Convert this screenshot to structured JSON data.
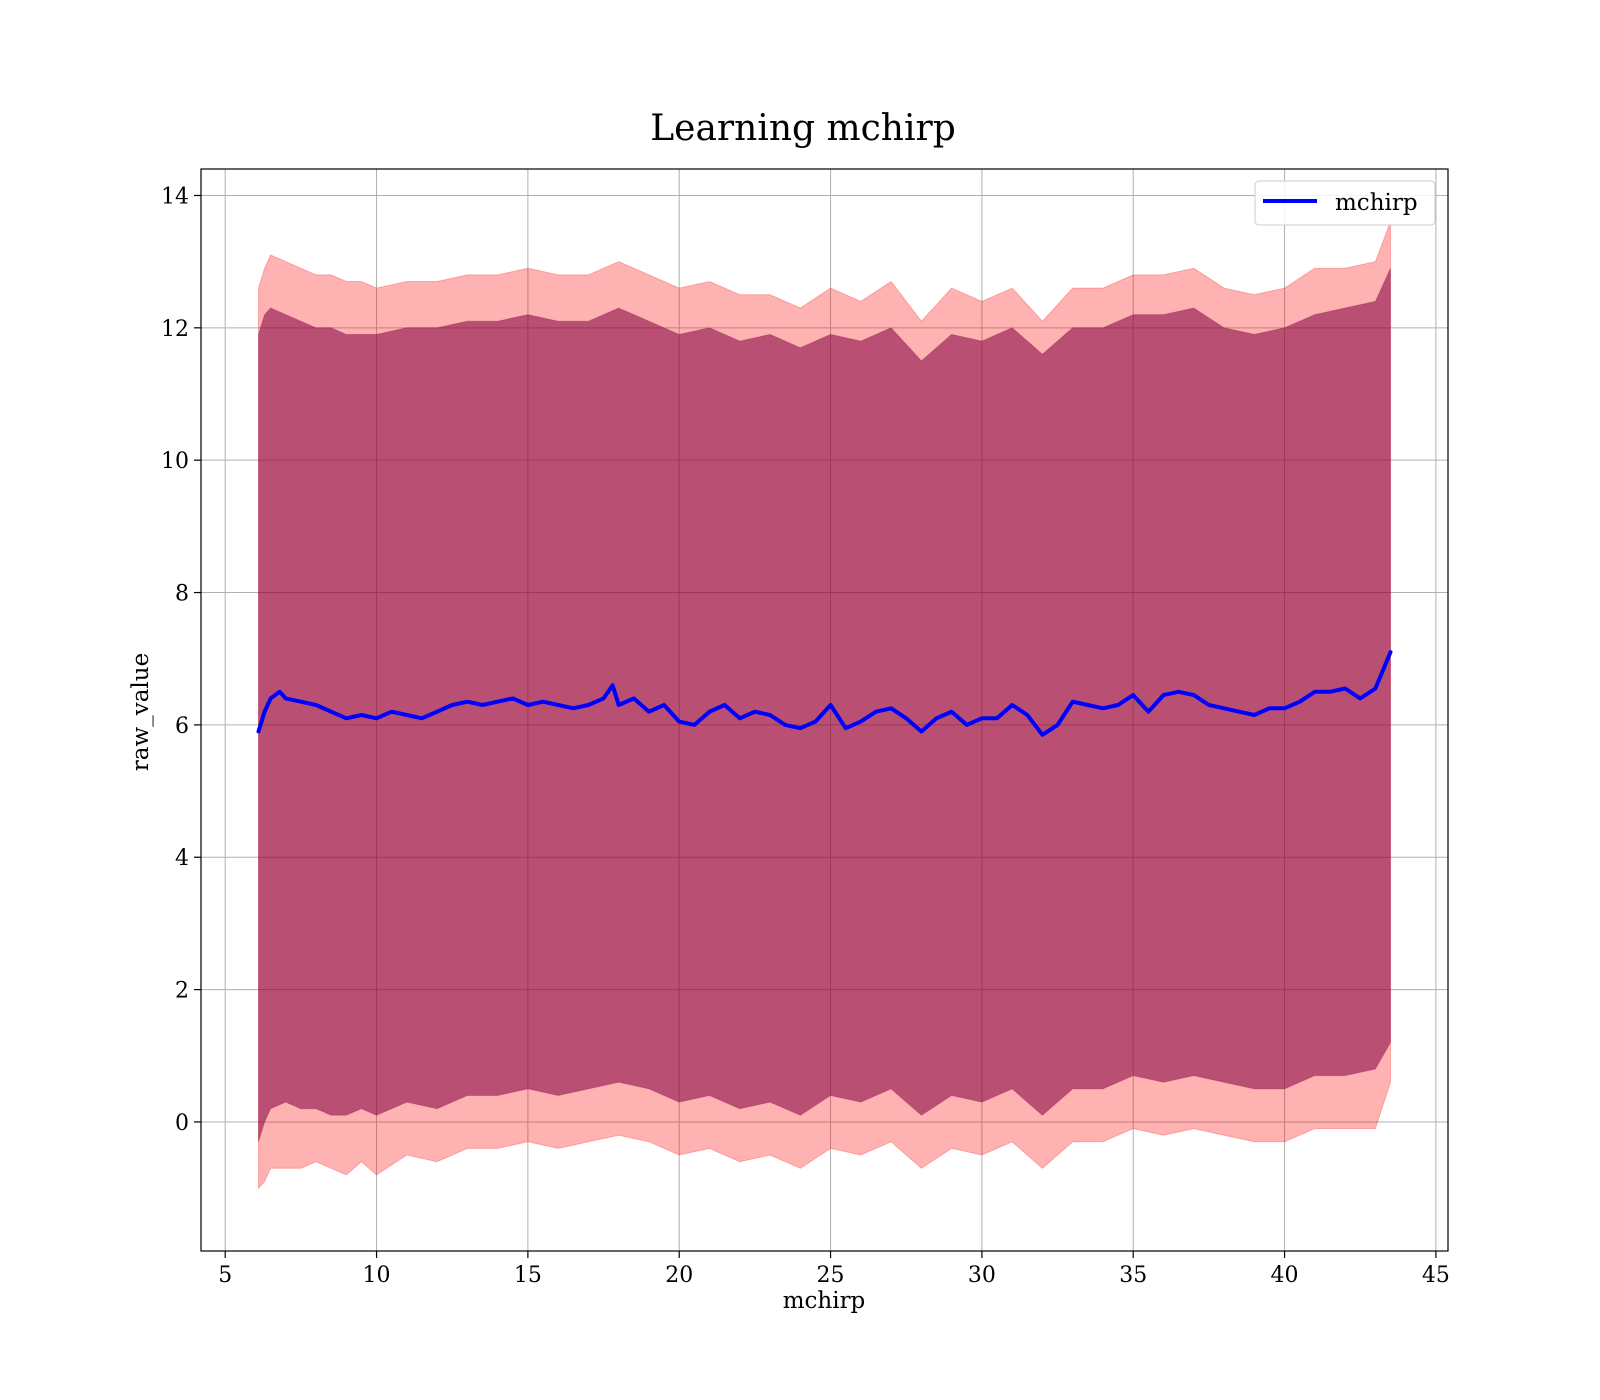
{
  "chart_data": {
    "type": "line",
    "title": "Learning mchirp",
    "xlabel": "mchirp",
    "ylabel": "raw_value",
    "xlim": [
      4.2,
      45.4
    ],
    "ylim": [
      -1.95,
      14.4
    ],
    "xticks": [
      5,
      10,
      15,
      20,
      25,
      30,
      35,
      40,
      45
    ],
    "yticks": [
      0,
      2,
      4,
      6,
      8,
      10,
      12,
      14
    ],
    "grid": true,
    "legend": {
      "placement": "top-right",
      "entries": [
        "mchirp"
      ]
    },
    "colors": {
      "line": "#0000ff",
      "band_outer": "#ff0000",
      "band_inner": "#800040",
      "grid": "#b0b0b0"
    },
    "series": [
      {
        "name": "mchirp",
        "color": "#0000ff",
        "x": [
          6.1,
          6.3,
          6.5,
          6.8,
          7.0,
          7.5,
          8.0,
          8.5,
          9.0,
          9.5,
          10.0,
          10.5,
          11.0,
          11.5,
          12.0,
          12.5,
          13.0,
          13.5,
          14.0,
          14.5,
          15.0,
          15.5,
          16.0,
          16.5,
          17.0,
          17.5,
          17.8,
          18.0,
          18.5,
          19.0,
          19.5,
          20.0,
          20.5,
          21.0,
          21.5,
          22.0,
          22.5,
          23.0,
          23.5,
          24.0,
          24.5,
          25.0,
          25.5,
          26.0,
          26.5,
          27.0,
          27.5,
          28.0,
          28.5,
          29.0,
          29.5,
          30.0,
          30.5,
          31.0,
          31.5,
          32.0,
          32.5,
          33.0,
          33.5,
          34.0,
          34.5,
          35.0,
          35.5,
          36.0,
          36.5,
          37.0,
          37.5,
          38.0,
          38.5,
          39.0,
          39.5,
          40.0,
          40.5,
          41.0,
          41.5,
          42.0,
          42.5,
          43.0,
          43.5
        ],
        "y": [
          5.9,
          6.2,
          6.4,
          6.5,
          6.4,
          6.35,
          6.3,
          6.2,
          6.1,
          6.15,
          6.1,
          6.2,
          6.15,
          6.1,
          6.2,
          6.3,
          6.35,
          6.3,
          6.35,
          6.4,
          6.3,
          6.35,
          6.3,
          6.25,
          6.3,
          6.4,
          6.6,
          6.3,
          6.4,
          6.2,
          6.3,
          6.05,
          6.0,
          6.2,
          6.3,
          6.1,
          6.2,
          6.15,
          6.0,
          5.95,
          6.05,
          6.3,
          5.95,
          6.05,
          6.2,
          6.25,
          6.1,
          5.9,
          6.1,
          6.2,
          6.0,
          6.1,
          6.1,
          6.3,
          6.15,
          5.85,
          6.0,
          6.35,
          6.3,
          6.25,
          6.3,
          6.45,
          6.2,
          6.45,
          6.5,
          6.45,
          6.3,
          6.25,
          6.2,
          6.15,
          6.25,
          6.25,
          6.35,
          6.5,
          6.5,
          6.55,
          6.4,
          6.55,
          7.1
        ]
      }
    ],
    "bands": [
      {
        "name": "outer",
        "x": [
          6.1,
          6.3,
          6.5,
          7.0,
          7.5,
          8.0,
          8.5,
          9.0,
          9.5,
          10.0,
          11.0,
          12.0,
          13.0,
          14.0,
          15.0,
          16.0,
          17.0,
          18.0,
          19.0,
          20.0,
          21.0,
          22.0,
          23.0,
          24.0,
          25.0,
          26.0,
          27.0,
          28.0,
          29.0,
          30.0,
          31.0,
          32.0,
          33.0,
          34.0,
          35.0,
          36.0,
          37.0,
          38.0,
          39.0,
          40.0,
          41.0,
          42.0,
          43.0,
          43.5
        ],
        "upper": [
          12.6,
          12.9,
          13.1,
          13.0,
          12.9,
          12.8,
          12.8,
          12.7,
          12.7,
          12.6,
          12.7,
          12.7,
          12.8,
          12.8,
          12.9,
          12.8,
          12.8,
          13.0,
          12.8,
          12.6,
          12.7,
          12.5,
          12.5,
          12.3,
          12.6,
          12.4,
          12.7,
          12.1,
          12.6,
          12.4,
          12.6,
          12.1,
          12.6,
          12.6,
          12.8,
          12.8,
          12.9,
          12.6,
          12.5,
          12.6,
          12.9,
          12.9,
          13.0,
          13.6
        ],
        "lower": [
          -1.0,
          -0.9,
          -0.7,
          -0.7,
          -0.7,
          -0.6,
          -0.7,
          -0.8,
          -0.6,
          -0.8,
          -0.5,
          -0.6,
          -0.4,
          -0.4,
          -0.3,
          -0.4,
          -0.3,
          -0.2,
          -0.3,
          -0.5,
          -0.4,
          -0.6,
          -0.5,
          -0.7,
          -0.4,
          -0.5,
          -0.3,
          -0.7,
          -0.4,
          -0.5,
          -0.3,
          -0.7,
          -0.3,
          -0.3,
          -0.1,
          -0.2,
          -0.1,
          -0.2,
          -0.3,
          -0.3,
          -0.1,
          -0.1,
          -0.1,
          0.6
        ]
      },
      {
        "name": "inner",
        "x": [
          6.1,
          6.3,
          6.5,
          7.0,
          7.5,
          8.0,
          8.5,
          9.0,
          9.5,
          10.0,
          11.0,
          12.0,
          13.0,
          14.0,
          15.0,
          16.0,
          17.0,
          18.0,
          19.0,
          20.0,
          21.0,
          22.0,
          23.0,
          24.0,
          25.0,
          26.0,
          27.0,
          28.0,
          29.0,
          30.0,
          31.0,
          32.0,
          33.0,
          34.0,
          35.0,
          36.0,
          37.0,
          38.0,
          39.0,
          40.0,
          41.0,
          42.0,
          43.0,
          43.5
        ],
        "upper": [
          11.9,
          12.2,
          12.3,
          12.2,
          12.1,
          12.0,
          12.0,
          11.9,
          11.9,
          11.9,
          12.0,
          12.0,
          12.1,
          12.1,
          12.2,
          12.1,
          12.1,
          12.3,
          12.1,
          11.9,
          12.0,
          11.8,
          11.9,
          11.7,
          11.9,
          11.8,
          12.0,
          11.5,
          11.9,
          11.8,
          12.0,
          11.6,
          12.0,
          12.0,
          12.2,
          12.2,
          12.3,
          12.0,
          11.9,
          12.0,
          12.2,
          12.3,
          12.4,
          12.9
        ],
        "lower": [
          -0.3,
          0.0,
          0.2,
          0.3,
          0.2,
          0.2,
          0.1,
          0.1,
          0.2,
          0.1,
          0.3,
          0.2,
          0.4,
          0.4,
          0.5,
          0.4,
          0.5,
          0.6,
          0.5,
          0.3,
          0.4,
          0.2,
          0.3,
          0.1,
          0.4,
          0.3,
          0.5,
          0.1,
          0.4,
          0.3,
          0.5,
          0.1,
          0.5,
          0.5,
          0.7,
          0.6,
          0.7,
          0.6,
          0.5,
          0.5,
          0.7,
          0.7,
          0.8,
          1.2
        ]
      }
    ]
  }
}
